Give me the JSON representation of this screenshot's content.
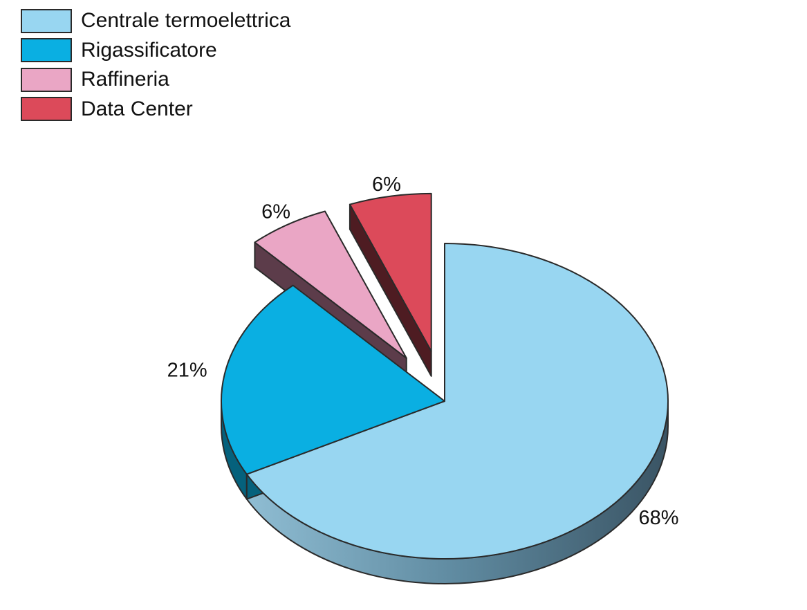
{
  "chart_data": {
    "type": "pie",
    "style": "3d-exploded",
    "legend_placement": "top-left",
    "categories": [
      "Centrale termoelettrica",
      "Rigassificatore",
      "Raffineria",
      "Data Center"
    ],
    "values": [
      68,
      21,
      6,
      6
    ],
    "value_labels": [
      "68%",
      "21%",
      "6%",
      "6%"
    ],
    "exploded": [
      false,
      false,
      true,
      true
    ],
    "colors": [
      "#98d6f1",
      "#0aafe2",
      "#eaa6c5",
      "#dc4a5a"
    ],
    "side_colors": [
      "#6f9cb2",
      "#05617c",
      "#5c3c4a",
      "#4e1c22"
    ]
  }
}
